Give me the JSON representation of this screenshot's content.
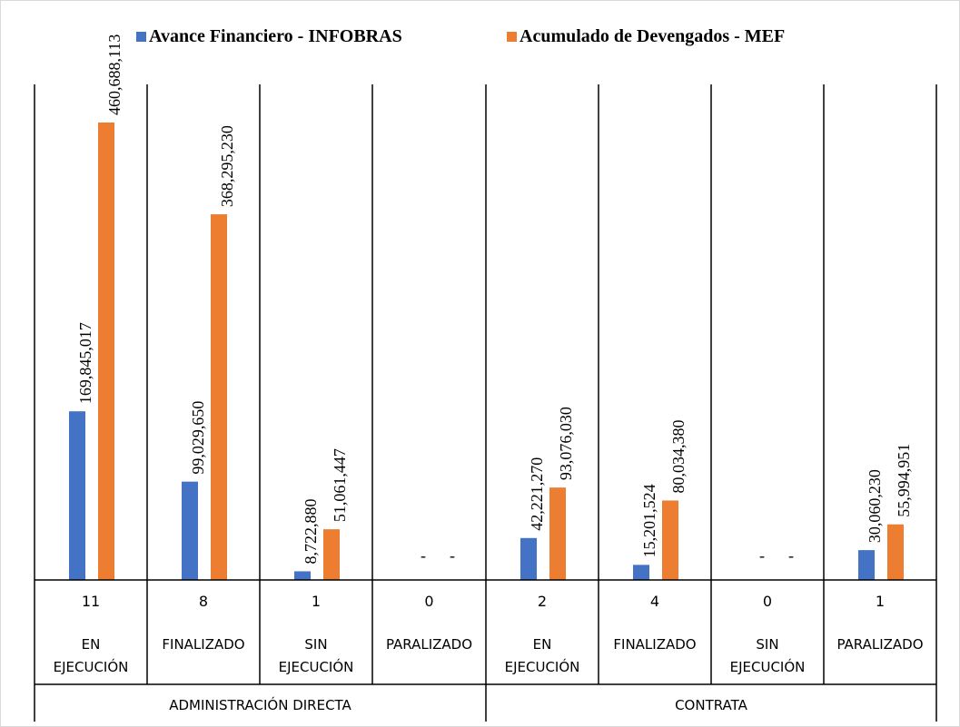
{
  "chart_data": {
    "type": "bar",
    "title": "",
    "legend_position": "top",
    "grid": false,
    "ylim": [
      0,
      500000000
    ],
    "y_axis_visible": false,
    "series": [
      {
        "name": "Avance Financiero - INFOBRAS",
        "color": "#4472C4",
        "values": [
          169845017,
          99029650,
          8722880,
          0,
          42221270,
          15201524,
          0,
          30060230
        ],
        "labels": [
          "169,845,017",
          "99,029,650",
          "8,722,880",
          "-",
          "42,221,270",
          "15,201,524",
          "-",
          "30,060,230"
        ]
      },
      {
        "name": "Acumulado de Devengados - MEF",
        "color": "#ED7D31",
        "values": [
          460688113,
          368295230,
          51061447,
          0,
          93076030,
          80034380,
          0,
          55994951
        ],
        "labels": [
          "460,688,113",
          "368,295,230",
          "51,061,447",
          "-",
          "93,076,030",
          "80,034,380",
          "-",
          "55,994,951"
        ]
      }
    ],
    "categories": [
      {
        "count": "11",
        "status": [
          "EN",
          "EJECUCIÓN"
        ]
      },
      {
        "count": "8",
        "status": [
          "FINALIZADO"
        ]
      },
      {
        "count": "1",
        "status": [
          "SIN",
          "EJECUCIÓN"
        ]
      },
      {
        "count": "0",
        "status": [
          "PARALIZADO"
        ]
      },
      {
        "count": "2",
        "status": [
          "EN",
          "EJECUCIÓN"
        ]
      },
      {
        "count": "4",
        "status": [
          "FINALIZADO"
        ]
      },
      {
        "count": "0",
        "status": [
          "SIN",
          "EJECUCIÓN"
        ]
      },
      {
        "count": "1",
        "status": [
          "PARALIZADO"
        ]
      }
    ],
    "groups": [
      {
        "label": "ADMINISTRACIÓN DIRECTA",
        "span": 4
      },
      {
        "label": "CONTRATA",
        "span": 4
      }
    ]
  }
}
